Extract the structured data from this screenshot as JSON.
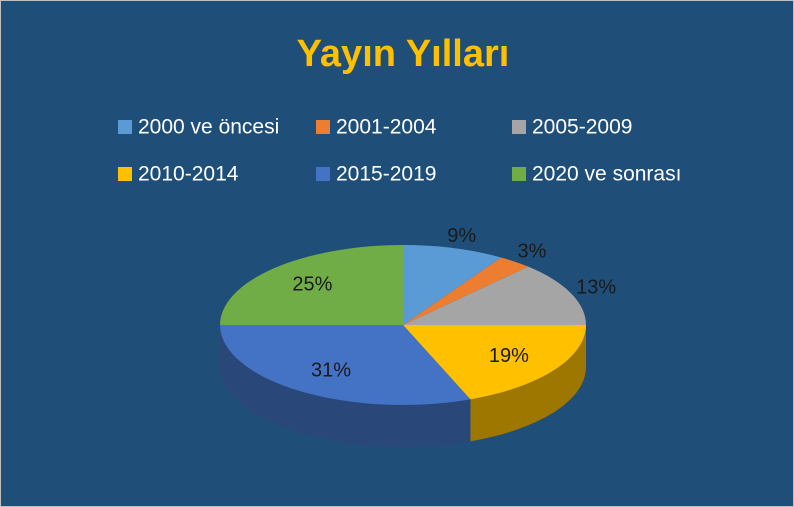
{
  "chart_data": {
    "type": "pie",
    "title": "Yayın Yılları",
    "categories": [
      "2000 ve öncesi",
      "2001-2004",
      "2005-2009",
      "2010-2014",
      "2015-2019",
      "2020 ve sonrası"
    ],
    "values": [
      9,
      3,
      13,
      19,
      31,
      25
    ],
    "value_labels": [
      "9%",
      "3%",
      "13%",
      "19%",
      "31%",
      "25%"
    ],
    "colors": [
      "#5b9bd5",
      "#ed7d31",
      "#a5a5a5",
      "#ffc000",
      "#4472c4",
      "#70ad47"
    ],
    "legend": "top"
  }
}
